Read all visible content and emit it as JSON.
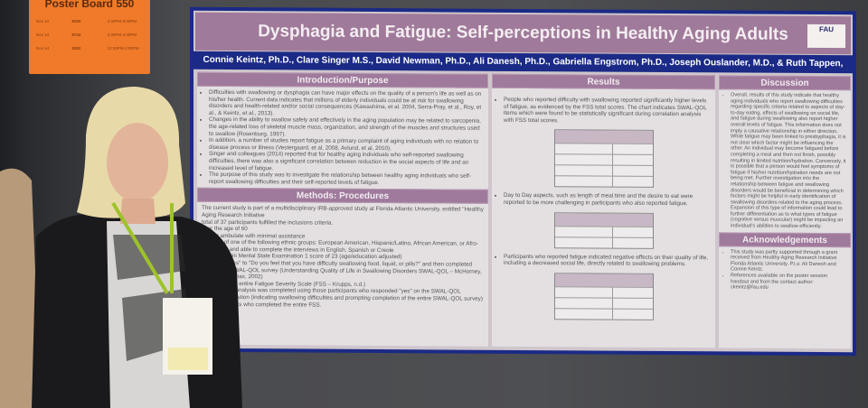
{
  "sign": {
    "title": "Poster Board 550",
    "rows": [
      [
        "Nov 12",
        "8260",
        "4:30PM-6:00PM"
      ],
      [
        "Nov 13",
        "8744",
        "2:30PM-4:00PM"
      ],
      [
        "Nov 14",
        "9282",
        "12:30PM-2:00PM"
      ]
    ]
  },
  "poster": {
    "title": "Dysphagia and Fatigue:  Self-perceptions in Healthy Aging Adults",
    "logo": "FAU",
    "authors": "Connie Keintz, Ph.D., Clare Singer M.S., David Newman, Ph.D., Ali Danesh, Ph.D., Gabriella Engstrom, Ph.D., Joseph Ouslander, M.D., & Ruth Tappen, Ed.D.",
    "intro": {
      "heading": "Introduction/Purpose",
      "bullets": [
        "Difficulties with swallowing or dysphagia can have major effects on the quality of a person's life as well as on his/her health. Current data indicates that millions of elderly individuals could be at risk for swallowing disorders and health-related and/or social consequences (Kawashima, et al. 2004, Serra-Pray, et al., Roy, et al., & Keintz, et al., 2013).",
        "Changes in the ability to swallow safely and effectively in the aging population may be related to sarcopenia, the age-related loss of skeletal muscle mass, organization, and strength of the muscles and structures used to swallow (Rosenburg, 1997).",
        "In addition, a number of studies report fatigue as a primary complaint of aging individuals with no relation to disease process or illness (Vestergaard, et al, 2008, Avlund, et al, 2010).",
        "Singer and colleagues (2014) reported that for healthy aging individuals who self-reported swallowing difficulties, there was also a significant correlation between reduction in the social aspects of life and an increased level of fatigue.",
        "The purpose of this study was to investigate the relationship between healthy aging individuals who self-report swallowing difficulties and their self-reported levels of fatigue."
      ]
    },
    "methods": {
      "heading": "Methods: Procedures",
      "lines": [
        "The current study is part of a multidisciplinary IRB-approved study at Florida Atlantic University, entitled \"Healthy Aging Research Initiative",
        "total of 37 participants fulfilled the inclusions criteria.",
        "over the age of 60",
        "able to ambulate with minimal assistance",
        "member of one of the following ethnic groups: European American, Hispanic/Latino, African American, or Afro-Caribbean and able to complete the interviews in English, Spanish or Creole",
        "minimum Mini Mental State Examination 1 score of 23 (age/education adjusted)",
        "answered \"yes\" to \"Do you feel that you have difficulty swallowing food, liquid, or pills?\" and then completed then entire SWAL-QOL survey (Understanding Quality of Life in Swallowing Disorders SWAL-QOL – McHorney, Robins, & Lomax, 2002)",
        "completed the entire Fatigue Severity Scale (FSS – Krupps, n.d.)",
        "Correlational analysis was completed using those participants who responded \"yes\" on the SWAL-QOL screening question (indicating swallowing difficulties and prompting completion of the entire SWAL-QOL survey) and participants who completed the entire FSS."
      ]
    },
    "results": {
      "heading": "Results",
      "bullets": [
        "People who reported difficulty with swallowing reported significantly higher levels of fatigue, as evidenced by the FSS total scores. The chart indicates SWAL-QOL items which were found to be statistically significant during correlation analysis with FSS total scores.",
        "Day to Day aspects, such as length of meal time and the desire to eat were reported to be more challenging in participants who also reported fatigue.",
        "Participants who reported fatigue indicated negative effects on their quality of life, including a decreased social life, directly related to swallowing problems."
      ]
    },
    "discussion": {
      "heading": "Discussion",
      "text": "Overall, results of this study indicate that healthy aging individuals who report swallowing difficulties regarding specific criteria related to aspects of day-to-day eating, effects of swallowing on social life, and fatigue during swallowing also report higher overall levels of fatigue. This information does not imply a causative relationship in either direction. While fatigue may been linked to presbyphagia, it is not clear which factor might be influencing the other. An individual may become fatigued before completing a meal and then not finish, possibly resulting in limited nutrition/hydration. Conversely, it is possible that a person would feel symptoms of fatigue if his/her nutrition/hydration needs are not being met. Further investigation into the relationship between fatigue and swallowing disorders would be beneficial in determining which factors might be helpful in early identification of swallowing disorders related to the aging process. Expansion of this type of information could lead to further differentiation as to what types of fatigue (cognitive versus muscular) might be impacting an individual's abilities to swallow efficiently."
    },
    "ack": {
      "heading": "Acknowledgements",
      "bullets": [
        "This study was partly supported through a grant received from Healthy Aging Research Initiative Florida Atlantic University. P.I.s: Ali Danesh and Connie Keintz.",
        "References available on the poster session handout and from the contact author: ckeintz@fau.edu"
      ]
    }
  },
  "colors": {
    "poster_header": "#9f7a9c",
    "poster_border": "#1b2a86",
    "sign": "#f07a2a"
  }
}
